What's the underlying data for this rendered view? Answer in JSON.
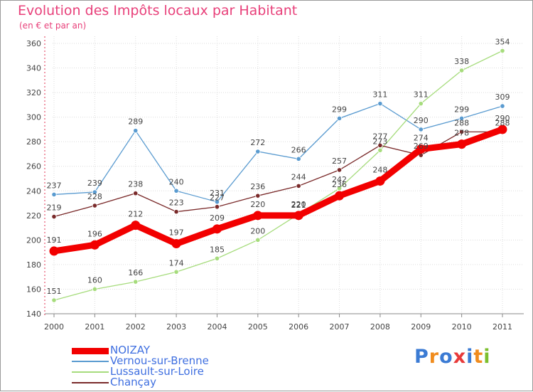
{
  "title": "Evolution des Impôts locaux par Habitant",
  "subtitle": "(en € et par an)",
  "logo": {
    "text": "Proxiti",
    "letter_colors": [
      "#3b7bd4",
      "#f08c1e",
      "#3b7bd4",
      "#e83a3a",
      "#3b7bd4",
      "#f08c1e",
      "#7cbf2e"
    ]
  },
  "chart_data": {
    "type": "line",
    "title": "Evolution des Impôts locaux par Habitant",
    "subtitle": "(en € et par an)",
    "xlabel": "",
    "ylabel": "",
    "x": [
      "2000",
      "2001",
      "2002",
      "2003",
      "2004",
      "2005",
      "2006",
      "2007",
      "2008",
      "2009",
      "2010",
      "2011"
    ],
    "ylim": [
      140,
      360
    ],
    "yticks": [
      140,
      160,
      180,
      200,
      220,
      240,
      260,
      280,
      300,
      320,
      340,
      360
    ],
    "grid": true,
    "legend_position": "bottom-left",
    "series": [
      {
        "name": "NOIZAY",
        "color": "#f20000",
        "emphasis": true,
        "values": [
          191,
          196,
          212,
          197,
          209,
          220,
          220,
          236,
          248,
          274,
          278,
          290
        ]
      },
      {
        "name": "Vernou-sur-Brenne",
        "color": "#5a9bd0",
        "values": [
          237,
          239,
          289,
          240,
          231,
          272,
          266,
          299,
          311,
          290,
          299,
          309
        ]
      },
      {
        "name": "Lussault-sur-Loire",
        "color": "#a6dc7c",
        "values": [
          151,
          160,
          166,
          174,
          185,
          200,
          221,
          242,
          273,
          311,
          338,
          354
        ]
      },
      {
        "name": "Chançay",
        "color": "#7a2a2a",
        "values": [
          219,
          228,
          238,
          223,
          227,
          236,
          244,
          257,
          277,
          269,
          288,
          288
        ]
      }
    ]
  }
}
